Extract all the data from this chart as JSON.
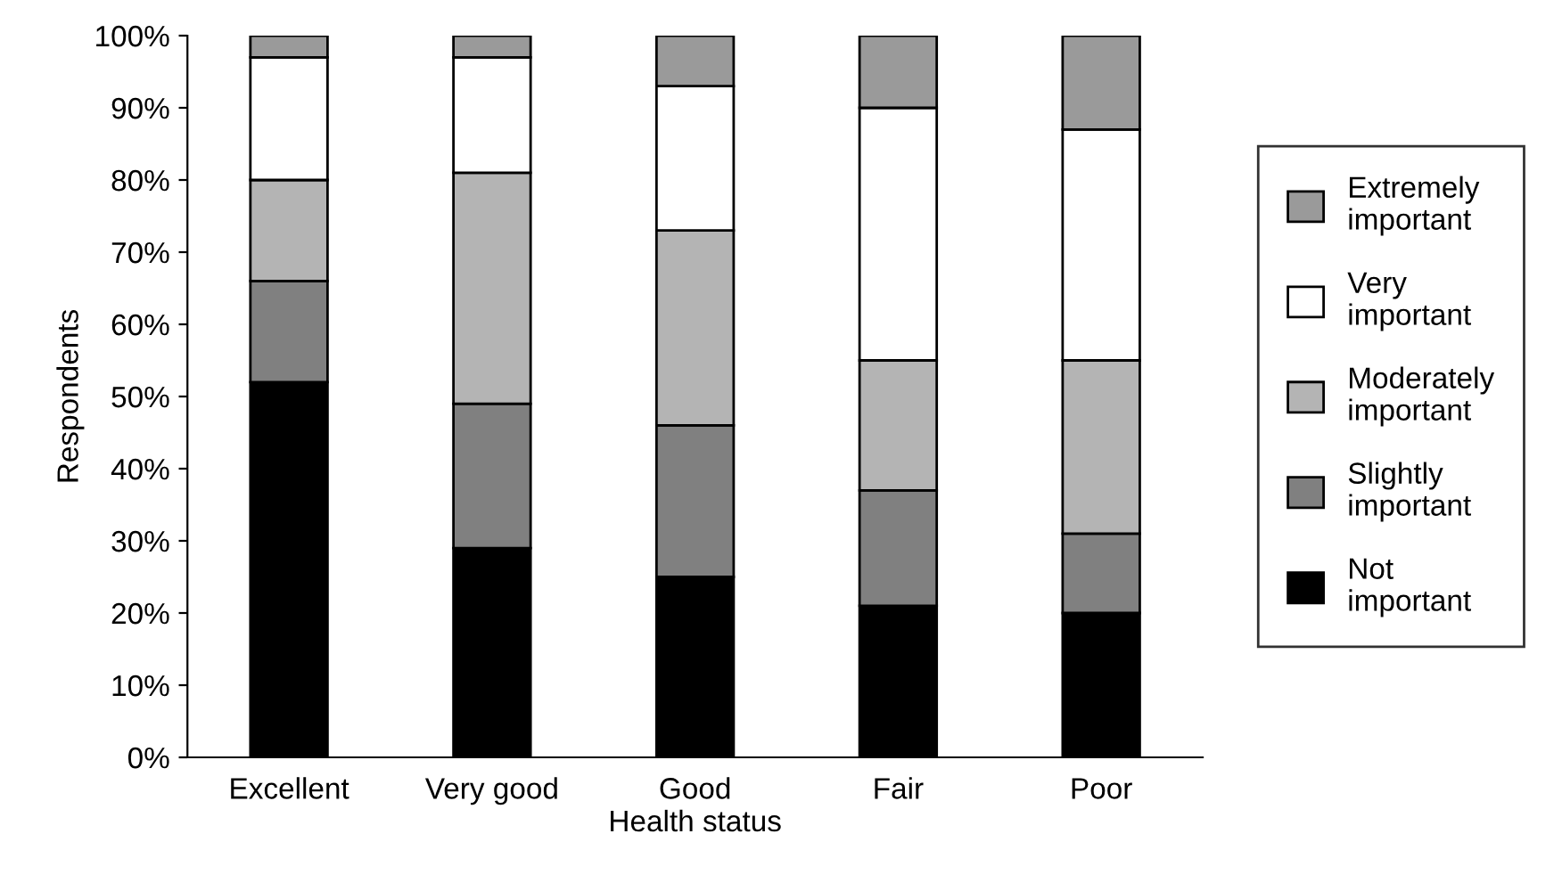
{
  "chart_data": {
    "type": "bar",
    "stacked": true,
    "xlabel": "Health status",
    "ylabel": "Respondents",
    "categories": [
      "Excellent",
      "Very good",
      "Good",
      "Fair",
      "Poor"
    ],
    "series": [
      {
        "name": "Not important",
        "color": "#000000",
        "values": [
          52,
          29,
          25,
          21,
          20
        ]
      },
      {
        "name": "Slightly important",
        "color": "#808080",
        "values": [
          14,
          20,
          21,
          16,
          11
        ]
      },
      {
        "name": "Moderately important",
        "color": "#b4b4b4",
        "values": [
          14,
          32,
          27,
          18,
          24
        ]
      },
      {
        "name": "Very important",
        "color": "#ffffff",
        "values": [
          17,
          16,
          20,
          35,
          32
        ]
      },
      {
        "name": "Extremely important",
        "color": "#9a9a9a",
        "values": [
          3,
          3,
          7,
          10,
          13
        ]
      }
    ],
    "ylim": [
      0,
      100
    ],
    "yticks": [
      {
        "value": 0,
        "label": "0%"
      },
      {
        "value": 10,
        "label": "10%"
      },
      {
        "value": 20,
        "label": "20%"
      },
      {
        "value": 30,
        "label": "30%"
      },
      {
        "value": 40,
        "label": "40%"
      },
      {
        "value": 50,
        "label": "50%"
      },
      {
        "value": 60,
        "label": "60%"
      },
      {
        "value": 70,
        "label": "70%"
      },
      {
        "value": 80,
        "label": "80%"
      },
      {
        "value": 90,
        "label": "90%"
      },
      {
        "value": 100,
        "label": "100%"
      }
    ],
    "grid": false,
    "legend": "right"
  }
}
